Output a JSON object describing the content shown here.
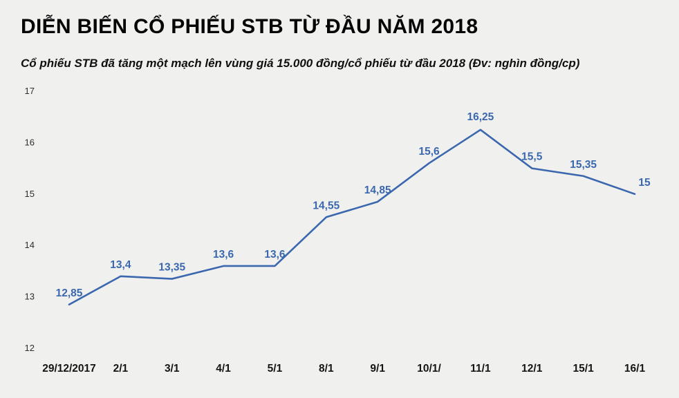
{
  "header": {
    "title": "DIỄN BIẾN CỔ PHIẾU STB TỪ ĐẦU NĂM 2018",
    "subtitle": "Cổ phiếu STB đã tăng một mạch lên vùng giá 15.000 đồng/cổ phiếu từ đầu 2018 (Đv: nghìn đồng/cp)"
  },
  "chart_data": {
    "type": "line",
    "title": "DIỄN BIẾN CỔ PHIẾU STB TỪ ĐẦU NĂM 2018",
    "categories": [
      "29/12/2017",
      "2/1",
      "3/1",
      "4/1",
      "5/1",
      "8/1",
      "9/1",
      "10/1/",
      "11/1",
      "12/1",
      "15/1",
      "16/1"
    ],
    "values": [
      12.85,
      13.4,
      13.35,
      13.6,
      13.6,
      14.55,
      14.85,
      15.6,
      16.25,
      15.5,
      15.35,
      15
    ],
    "value_labels": [
      "12,85",
      "13,4",
      "13,35",
      "13,6",
      "13,6",
      "14,55",
      "14,85",
      "15,6",
      "16,25",
      "15,5",
      "15,35",
      "15"
    ],
    "xlabel": "",
    "ylabel": "",
    "ylim": [
      12,
      17
    ],
    "yticks": [
      12,
      13,
      14,
      15,
      16,
      17
    ],
    "grid": false,
    "legend": "none",
    "line_color": "#3a67ae",
    "label_color": "#3a67ae",
    "background_color": "#f0f0ee"
  }
}
